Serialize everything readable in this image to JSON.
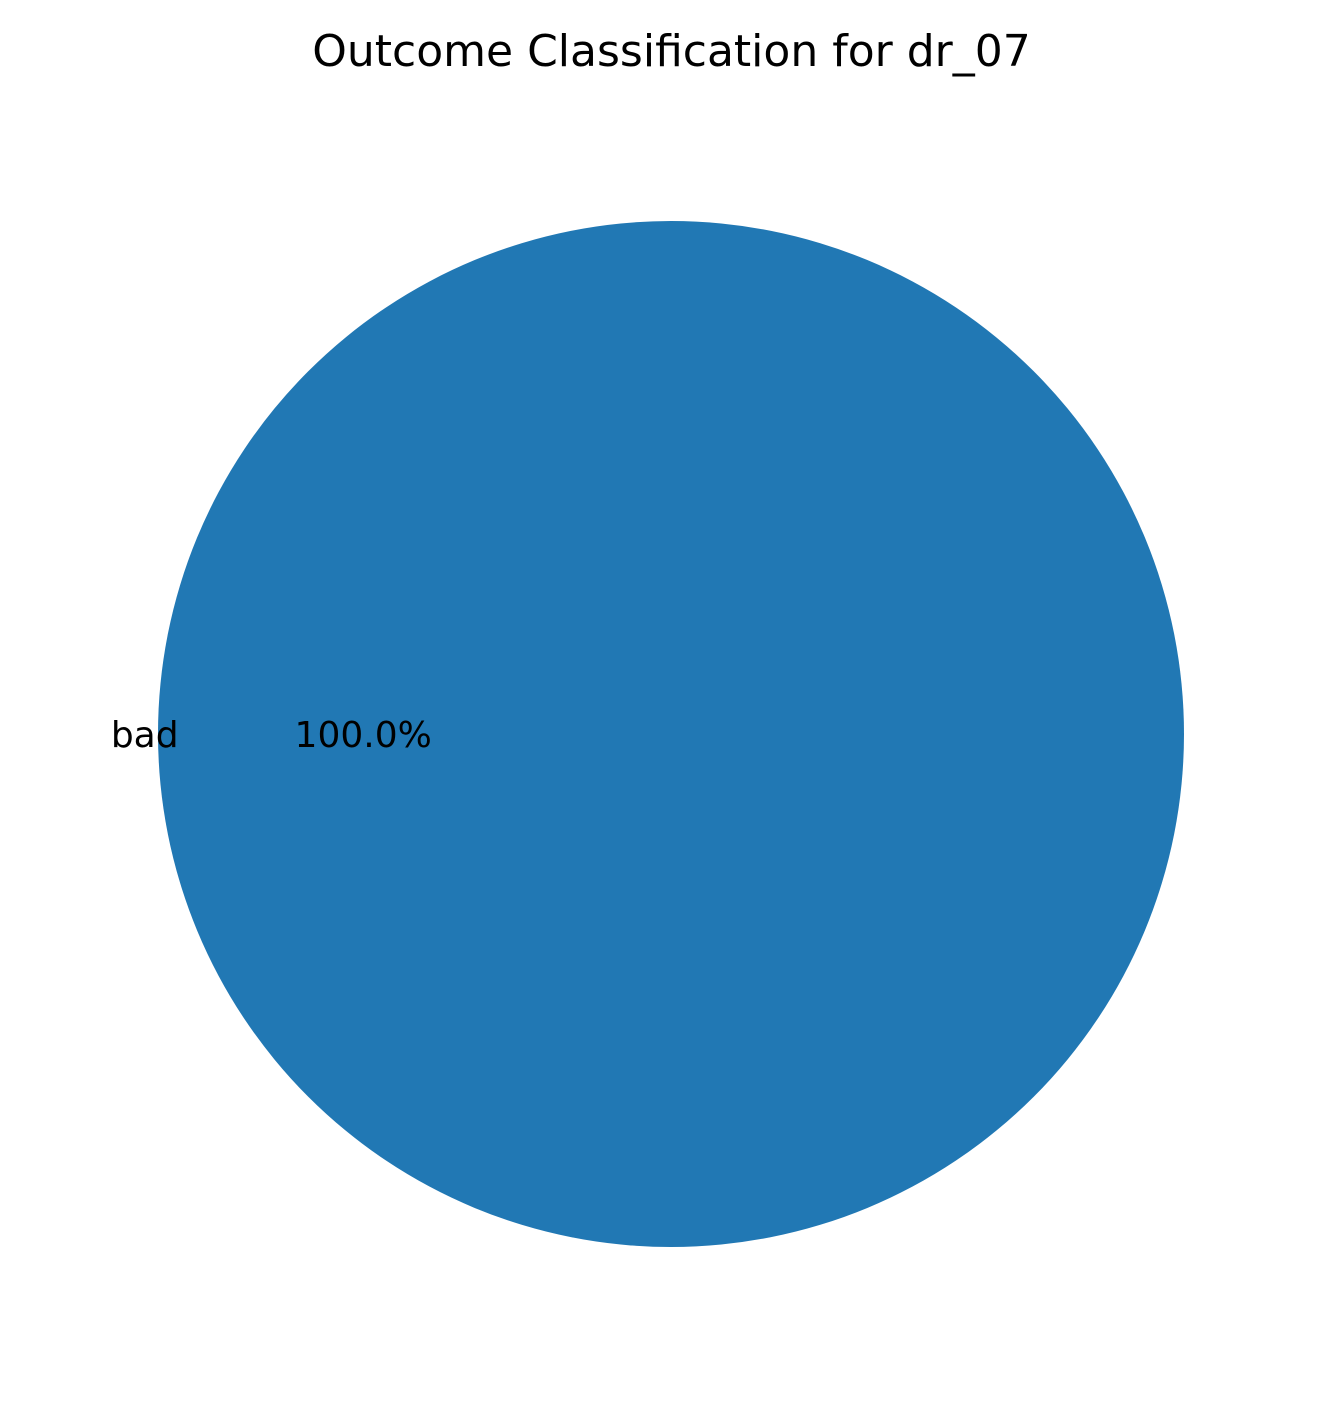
{
  "chart_data": {
    "type": "pie",
    "title": "Outcome Classification for dr_07",
    "categories": [
      "bad"
    ],
    "values": [
      100.0
    ],
    "value_labels": [
      "100.0%"
    ],
    "colors": [
      "#2178b4"
    ],
    "legend": "none"
  }
}
